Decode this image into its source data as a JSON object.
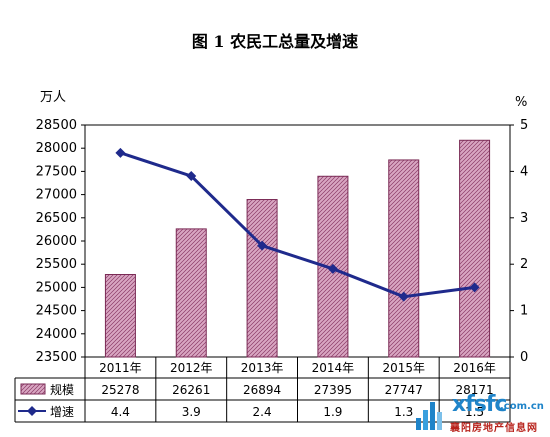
{
  "chart_data": {
    "type": "bar+line",
    "title": "图 1 农民工总量及增速",
    "categories": [
      "2011年",
      "2012年",
      "2013年",
      "2014年",
      "2015年",
      "2016年"
    ],
    "left_axis": {
      "unit": "万人",
      "ylim": [
        23500,
        28500
      ],
      "ticks": [
        23500,
        24000,
        24500,
        25000,
        25500,
        26000,
        26500,
        27000,
        27500,
        28000,
        28500
      ]
    },
    "right_axis": {
      "unit": "%",
      "ylim": [
        0,
        5
      ],
      "ticks": [
        0,
        1,
        2,
        3,
        4,
        5
      ]
    },
    "series": [
      {
        "name": "规模",
        "kind": "bar",
        "axis": "left",
        "values": [
          25278,
          26261,
          26894,
          27395,
          27747,
          28171
        ],
        "labels": [
          "25278",
          "26261",
          "26894",
          "27395",
          "27747",
          "28171"
        ],
        "color": "#cc99b3",
        "stroke": "#7a2a55"
      },
      {
        "name": "增速",
        "kind": "line",
        "axis": "right",
        "values": [
          4.4,
          3.9,
          2.4,
          1.9,
          1.3,
          1.5
        ],
        "labels": [
          "4.4",
          "3.9",
          "2.4",
          "1.9",
          "1.3",
          "1.5"
        ],
        "color": "#1f2a8c"
      }
    ],
    "grid": false,
    "legend": "data-table-below"
  },
  "watermark": {
    "logo": "xfsfc",
    "domain": ".com.cn",
    "subtitle": "襄阳房地产信息网"
  }
}
